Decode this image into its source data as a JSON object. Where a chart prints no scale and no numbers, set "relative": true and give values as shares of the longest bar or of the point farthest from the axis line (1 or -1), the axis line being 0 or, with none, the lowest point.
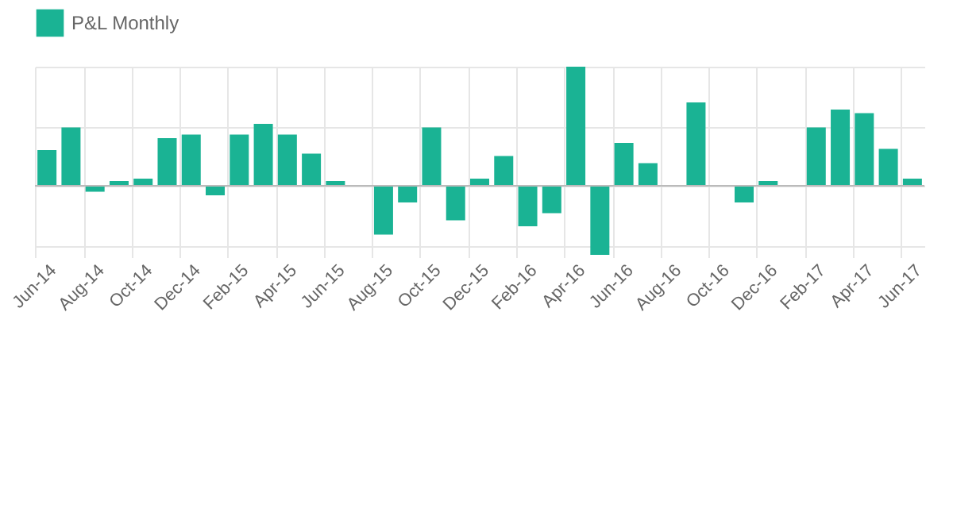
{
  "chart_data": {
    "type": "bar",
    "relative": true,
    "grid": true,
    "legend": "top",
    "categories": [
      "Jun-14",
      null,
      "Aug-14",
      null,
      "Oct-14",
      null,
      "Dec-14",
      null,
      "Feb-15",
      null,
      "Apr-15",
      null,
      "Jun-15",
      null,
      "Aug-15",
      null,
      "Oct-15",
      null,
      "Dec-15",
      null,
      "Feb-16",
      null,
      "Apr-16",
      null,
      "Jun-16",
      null,
      "Aug-16",
      null,
      "Oct-16",
      null,
      "Dec-16",
      null,
      "Feb-17",
      null,
      "Apr-17",
      null,
      "Jun-17"
    ],
    "series": [
      {
        "name": "P&L Monthly",
        "color": "#1ab394",
        "values": [
          0.3,
          0.49,
          -0.05,
          0.04,
          0.06,
          0.4,
          0.43,
          -0.08,
          0.43,
          0.52,
          0.43,
          0.27,
          0.04,
          0,
          -0.41,
          -0.14,
          0.49,
          -0.29,
          0.06,
          0.25,
          -0.34,
          -0.23,
          1,
          -0.58,
          0.36,
          0.19,
          0,
          0.7,
          0,
          -0.14,
          0.04,
          0,
          0.49,
          0.64,
          0.61,
          0.31,
          0.06
        ]
      }
    ]
  }
}
